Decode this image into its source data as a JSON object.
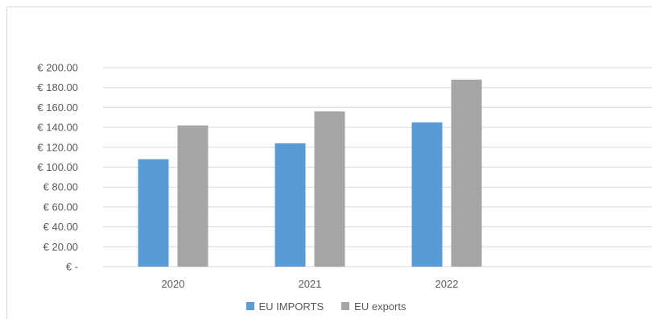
{
  "chart_data": {
    "type": "bar",
    "categories": [
      "2020",
      "2021",
      "2022"
    ],
    "series": [
      {
        "name": "EU IMPORTS",
        "values": [
          108,
          124,
          145
        ],
        "color": "#5b9bd5"
      },
      {
        "name": "EU exports",
        "values": [
          142,
          156,
          188
        ],
        "color": "#a5a5a5"
      }
    ],
    "ylim": [
      0,
      200
    ],
    "yticks": [
      0,
      20,
      40,
      60,
      80,
      100,
      120,
      140,
      160,
      180,
      200
    ],
    "ytick_labels": [
      "€ -",
      "€ 20.00",
      "€ 40.00",
      "€ 60.00",
      "€ 80.00",
      "€ 100.00",
      "€ 120.00",
      "€ 140.00",
      "€ 160.00",
      "€ 180.00",
      "€ 200.00"
    ],
    "grid": true,
    "legend_position": "bottom",
    "title": "",
    "xlabel": "",
    "ylabel": ""
  }
}
